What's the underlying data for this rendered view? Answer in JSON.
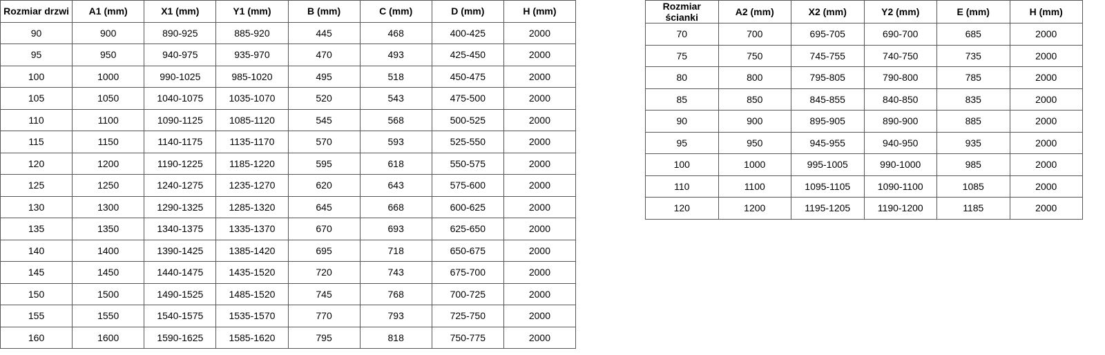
{
  "doors_table": {
    "headers": [
      "Rozmiar drzwi",
      "A1 (mm)",
      "X1 (mm)",
      "Y1 (mm)",
      "B (mm)",
      "C (mm)",
      "D (mm)",
      "H (mm)"
    ],
    "rows": [
      [
        "90",
        "900",
        "890-925",
        "885-920",
        "445",
        "468",
        "400-425",
        "2000"
      ],
      [
        "95",
        "950",
        "940-975",
        "935-970",
        "470",
        "493",
        "425-450",
        "2000"
      ],
      [
        "100",
        "1000",
        "990-1025",
        "985-1020",
        "495",
        "518",
        "450-475",
        "2000"
      ],
      [
        "105",
        "1050",
        "1040-1075",
        "1035-1070",
        "520",
        "543",
        "475-500",
        "2000"
      ],
      [
        "110",
        "1100",
        "1090-1125",
        "1085-1120",
        "545",
        "568",
        "500-525",
        "2000"
      ],
      [
        "115",
        "1150",
        "1140-1175",
        "1135-1170",
        "570",
        "593",
        "525-550",
        "2000"
      ],
      [
        "120",
        "1200",
        "1190-1225",
        "1185-1220",
        "595",
        "618",
        "550-575",
        "2000"
      ],
      [
        "125",
        "1250",
        "1240-1275",
        "1235-1270",
        "620",
        "643",
        "575-600",
        "2000"
      ],
      [
        "130",
        "1300",
        "1290-1325",
        "1285-1320",
        "645",
        "668",
        "600-625",
        "2000"
      ],
      [
        "135",
        "1350",
        "1340-1375",
        "1335-1370",
        "670",
        "693",
        "625-650",
        "2000"
      ],
      [
        "140",
        "1400",
        "1390-1425",
        "1385-1420",
        "695",
        "718",
        "650-675",
        "2000"
      ],
      [
        "145",
        "1450",
        "1440-1475",
        "1435-1520",
        "720",
        "743",
        "675-700",
        "2000"
      ],
      [
        "150",
        "1500",
        "1490-1525",
        "1485-1520",
        "745",
        "768",
        "700-725",
        "2000"
      ],
      [
        "155",
        "1550",
        "1540-1575",
        "1535-1570",
        "770",
        "793",
        "725-750",
        "2000"
      ],
      [
        "160",
        "1600",
        "1590-1625",
        "1585-1620",
        "795",
        "818",
        "750-775",
        "2000"
      ]
    ]
  },
  "wall_table": {
    "headers": [
      "Rozmiar ścianki",
      "A2 (mm)",
      "X2 (mm)",
      "Y2 (mm)",
      "E (mm)",
      "H (mm)"
    ],
    "rows": [
      [
        "70",
        "700",
        "695-705",
        "690-700",
        "685",
        "2000"
      ],
      [
        "75",
        "750",
        "745-755",
        "740-750",
        "735",
        "2000"
      ],
      [
        "80",
        "800",
        "795-805",
        "790-800",
        "785",
        "2000"
      ],
      [
        "85",
        "850",
        "845-855",
        "840-850",
        "835",
        "2000"
      ],
      [
        "90",
        "900",
        "895-905",
        "890-900",
        "885",
        "2000"
      ],
      [
        "95",
        "950",
        "945-955",
        "940-950",
        "935",
        "2000"
      ],
      [
        "100",
        "1000",
        "995-1005",
        "990-1000",
        "985",
        "2000"
      ],
      [
        "110",
        "1100",
        "1095-1105",
        "1090-1100",
        "1085",
        "2000"
      ],
      [
        "120",
        "1200",
        "1195-1205",
        "1190-1200",
        "1185",
        "2000"
      ]
    ]
  }
}
